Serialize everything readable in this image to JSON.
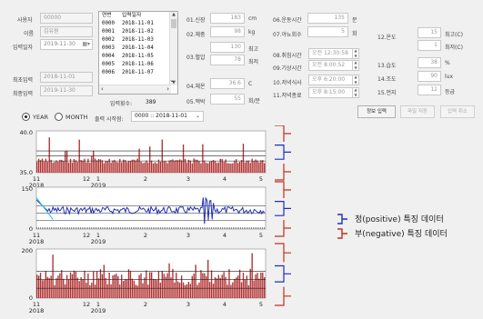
{
  "left_fields": [
    {
      "label": "사용자",
      "value": "00000"
    },
    {
      "label": "이름",
      "value": "김유원"
    },
    {
      "label": "입력일자",
      "value": "2019-11-30"
    },
    {
      "label": "최초입력",
      "value": "2018-11-01"
    },
    {
      "label": "최종입력",
      "value": "2019-11-30"
    }
  ],
  "list": {
    "headers": [
      "연번",
      "입력일자"
    ],
    "rows": [
      [
        "0000",
        "2018-11-01"
      ],
      [
        "0001",
        "2018-11-02"
      ],
      [
        "0002",
        "2018-11-03"
      ],
      [
        "0003",
        "2018-11-04"
      ],
      [
        "0004",
        "2018-11-05"
      ],
      [
        "0005",
        "2018-11-06"
      ],
      [
        "0006",
        "2018-11-07"
      ]
    ]
  },
  "input_count": {
    "label": "입력횟수:",
    "value": "389"
  },
  "col1": [
    {
      "label": "01.신장",
      "value": "183",
      "unit": "cm"
    },
    {
      "label": "02.체중",
      "value": "98",
      "unit": "kg"
    },
    {
      "label": "03.혈압",
      "value": "130",
      "unit": "최고"
    },
    {
      "label": "",
      "value": "78",
      "unit": "최저"
    },
    {
      "label": "04.체온",
      "value": "36.6",
      "unit": "C"
    },
    {
      "label": "05.맥박",
      "value": "55",
      "unit": "회/분"
    }
  ],
  "col2": [
    {
      "label": "06.운동시간",
      "value": "135",
      "unit": "분"
    },
    {
      "label": "07.야뇨회수",
      "value": "5",
      "unit": "회"
    },
    {
      "label": "08.취침시간",
      "value": "오전 12:30:58",
      "unit": ""
    },
    {
      "label": "09.기상시간",
      "value": "오전  8:00:52",
      "unit": ""
    },
    {
      "label": "10.저녁식사",
      "value": "오후  6:20:00",
      "unit": ""
    },
    {
      "label": "11.저녁종료",
      "value": "오후  8:15:00",
      "unit": ""
    }
  ],
  "col3": [
    {
      "label": "12.온도",
      "value": "15",
      "unit": "최고(C)"
    },
    {
      "label": "",
      "value": "1",
      "unit": "최저(C)"
    },
    {
      "label": "13.습도",
      "value": "38",
      "unit": "%"
    },
    {
      "label": "14.조도",
      "value": "90",
      "unit": "lux"
    },
    {
      "label": "15.먼지",
      "value": "12",
      "unit": "등급"
    }
  ],
  "buttons": {
    "submit": "정보 입력",
    "save": "파일 저장",
    "cancel": "입력 취소"
  },
  "radio": {
    "year": "YEAR",
    "month": "MONTH"
  },
  "start_point": {
    "label": "출력 시작점:",
    "value": "0000 :: 2018-11-01"
  },
  "charts": [
    {
      "ymax": "40.0",
      "ymin": "35.0"
    },
    {
      "ymax": "150",
      "ymin": "0"
    },
    {
      "ymax": "200",
      "ymin": "0"
    }
  ],
  "x_months": [
    "11",
    "12",
    "1",
    "2",
    "3",
    "4",
    "5"
  ],
  "x_years": [
    "2018",
    "2019"
  ],
  "legend": {
    "positive": "정(positive) 특징 데이터",
    "negative": "부(negative) 특징 데이터"
  },
  "colors": {
    "bar": "#b03030",
    "line_blue": "#2030b0",
    "line_cyan": "#20c0e0",
    "legend_pos": "#2030b0",
    "legend_neg": "#c03020"
  }
}
